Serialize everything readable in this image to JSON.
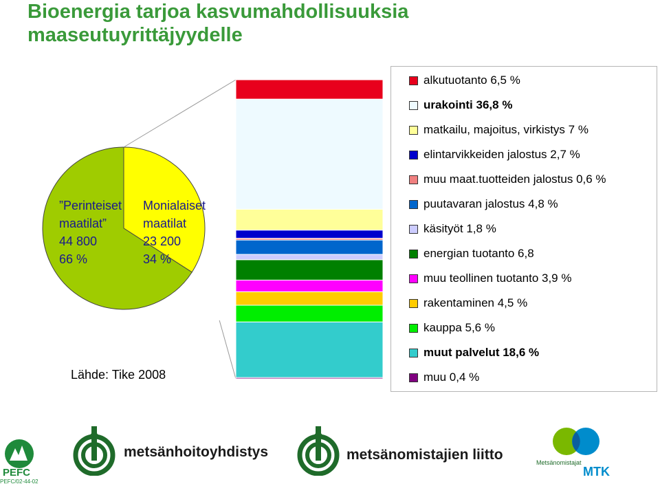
{
  "title_line1": "Bioenergia tarjoa kasvumahdollisuuksia",
  "title_line2": "maaseutuyrittäjyydelle",
  "source": "Lähde: Tike 2008",
  "colors": {
    "title": "#3a9a3a",
    "pie_traditional": "#9fcc00",
    "pie_diversified": "#ffff00"
  },
  "chart_data": [
    {
      "type": "pie",
      "slices": [
        {
          "label_lines": [
            "”Perinteiset",
            "maatilat”",
            "44 800",
            "66 %"
          ],
          "count": 44800,
          "percent": 66,
          "color": "#9fcc00"
        },
        {
          "label_lines": [
            "Monialaiset",
            "maatilat",
            "23 200",
            "34 %"
          ],
          "count": 23200,
          "percent": 34,
          "color": "#ffff00"
        }
      ]
    },
    {
      "type": "bar",
      "stacked": true,
      "unit": "%",
      "legend_position": "right",
      "segments": [
        {
          "label": "alkutuotanto 6,5 %",
          "value": 6.5,
          "color": "#e8001c",
          "bold": false
        },
        {
          "label": "urakointi 36,8 %",
          "value": 36.8,
          "color": "#eefaff",
          "bold": true
        },
        {
          "label": "matkailu, majoitus, virkistys 7 %",
          "value": 7.0,
          "color": "#ffff99",
          "bold": false
        },
        {
          "label": "elintarvikkeiden jalostus 2,7 %",
          "value": 2.7,
          "color": "#0000cc",
          "bold": false
        },
        {
          "label": "muu maat.tuotteiden jalostus 0,6 %",
          "value": 0.6,
          "color": "#f08080",
          "bold": false
        },
        {
          "label": "puutavaran jalostus 4,8 %",
          "value": 4.8,
          "color": "#0066cc",
          "bold": false
        },
        {
          "label": "käsityöt 1,8 %",
          "value": 1.8,
          "color": "#ccccff",
          "bold": false
        },
        {
          "label": "energian tuotanto 6,8",
          "value": 6.8,
          "color": "#008000",
          "bold": false
        },
        {
          "label": "muu teollinen tuotanto 3,9 %",
          "value": 3.9,
          "color": "#ff00ff",
          "bold": false
        },
        {
          "label": "rakentaminen 4,5 %",
          "value": 4.5,
          "color": "#ffcc00",
          "bold": false
        },
        {
          "label": "kauppa 5,6 %",
          "value": 5.6,
          "color": "#00ee00",
          "bold": false
        },
        {
          "label": "muut palvelut 18,6 %",
          "value": 18.6,
          "color": "#33cccc",
          "bold": true
        },
        {
          "label": "muu 0,4 %",
          "value": 0.4,
          "color": "#800080",
          "bold": false
        }
      ]
    }
  ],
  "logos": {
    "pefc": "PEFC",
    "pefc_code": "PEFC/02-44-02",
    "mhy": "metsänhoitoyhdistys",
    "mol": "metsänomistajien liitto",
    "mtk_small": "Metsänomistajat",
    "mtk": "MTK"
  }
}
